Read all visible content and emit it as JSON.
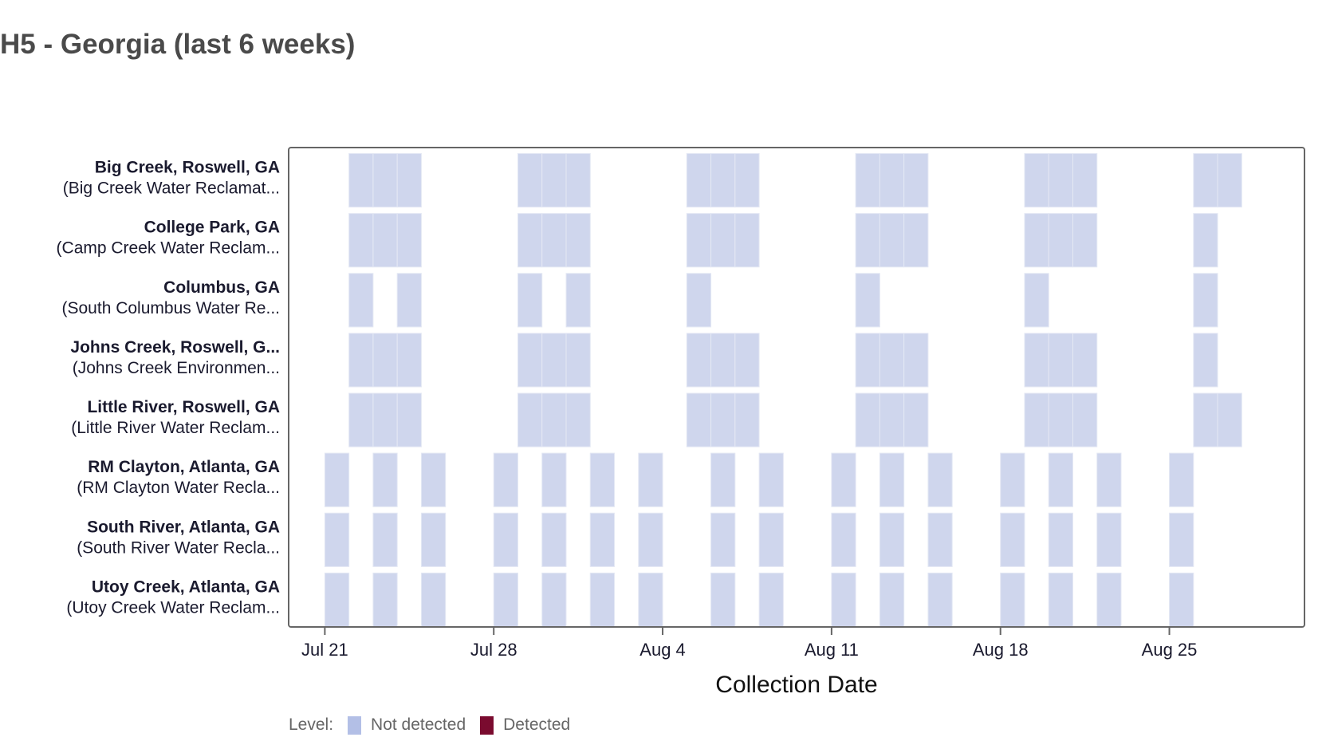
{
  "chart_data": {
    "type": "heatmap",
    "title": "H5 - Georgia (last 6 weeks)",
    "xlabel": "Collection Date",
    "ylabel": "",
    "x_ticks": [
      "Jul 21",
      "Jul 28",
      "Aug 4",
      "Aug 11",
      "Aug 18",
      "Aug 25"
    ],
    "x_tick_days": [
      0,
      7,
      14,
      21,
      28,
      35
    ],
    "x_origin": "Jul 21",
    "x_range_days": [
      -1.5,
      40.6
    ],
    "legend": {
      "title": "Level:",
      "placement": "bottom-left",
      "entries": [
        {
          "label": "Not detected",
          "color": "#b3bfe6"
        },
        {
          "label": "Detected",
          "color": "#7a0b2f"
        }
      ]
    },
    "cell_color": "#cfd6ed",
    "rows": [
      {
        "site": "Big Creek, Roswell, GA",
        "plant": "(Big Creek Water Reclamat...",
        "level": "Not detected",
        "days": [
          1,
          2,
          3,
          8,
          9,
          10,
          15,
          16,
          17,
          22,
          23,
          24,
          29,
          30,
          31,
          36,
          37
        ]
      },
      {
        "site": "College Park, GA",
        "plant": "(Camp Creek Water Reclam...",
        "level": "Not detected",
        "days": [
          1,
          2,
          3,
          8,
          9,
          10,
          15,
          16,
          17,
          22,
          23,
          24,
          29,
          30,
          31,
          36
        ]
      },
      {
        "site": "Columbus, GA",
        "plant": "(South Columbus Water Re...",
        "level": "Not detected",
        "days": [
          1,
          3,
          8,
          10,
          15,
          22,
          29,
          36
        ]
      },
      {
        "site": "Johns Creek, Roswell, G...",
        "plant": "(Johns Creek Environmen...",
        "level": "Not detected",
        "days": [
          1,
          2,
          3,
          8,
          9,
          10,
          15,
          16,
          17,
          22,
          23,
          24,
          29,
          30,
          31,
          36
        ]
      },
      {
        "site": "Little River, Roswell, GA",
        "plant": "(Little River Water Reclam...",
        "level": "Not detected",
        "days": [
          1,
          2,
          3,
          8,
          9,
          10,
          15,
          16,
          17,
          22,
          23,
          24,
          29,
          30,
          31,
          36,
          37
        ]
      },
      {
        "site": "RM Clayton, Atlanta, GA",
        "plant": "(RM Clayton Water Recla...",
        "level": "Not detected",
        "days": [
          0,
          2,
          4,
          7,
          9,
          11,
          13,
          16,
          18,
          21,
          23,
          25,
          28,
          30,
          32,
          35
        ]
      },
      {
        "site": "South River, Atlanta, GA",
        "plant": "(South River Water Recla...",
        "level": "Not detected",
        "days": [
          0,
          2,
          4,
          7,
          9,
          11,
          13,
          16,
          18,
          21,
          23,
          25,
          28,
          30,
          32,
          35
        ]
      },
      {
        "site": "Utoy Creek, Atlanta, GA",
        "plant": "(Utoy Creek Water Reclam...",
        "level": "Not detected",
        "days": [
          0,
          2,
          4,
          7,
          9,
          11,
          13,
          16,
          18,
          21,
          23,
          25,
          28,
          30,
          32,
          35
        ]
      }
    ]
  }
}
